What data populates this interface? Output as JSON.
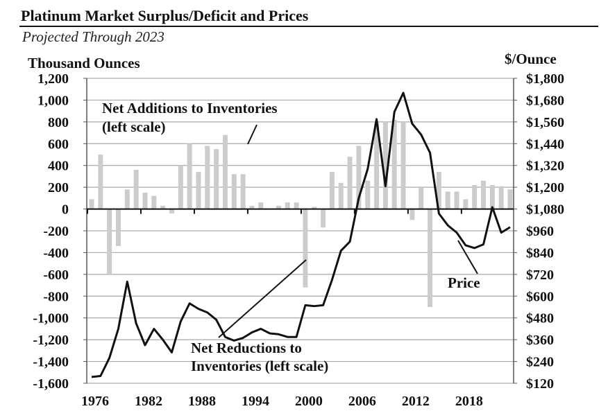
{
  "chart_data": {
    "type": "bar",
    "title": "Platinum Market Surplus/Deficit and Prices",
    "subtitle": "Projected Through 2023",
    "ylabel": "Thousand Ounces",
    "y2label": "$/Ounce",
    "ylim": [
      -1600,
      1200
    ],
    "y2lim": [
      120,
      1800
    ],
    "yticks": [
      "1,200",
      "1,000",
      "800",
      "600",
      "400",
      "200",
      "0",
      "-200",
      "-400",
      "-600",
      "-800",
      "-1,000",
      "-1,200",
      "-1,400",
      "-1,600"
    ],
    "y2ticks": [
      "$1,800",
      "$1,680",
      "$1,560",
      "$1,440",
      "$1,320",
      "$1,200",
      "$1,080",
      "$960",
      "$840",
      "$720",
      "$600",
      "$480",
      "$360",
      "$240",
      "$120"
    ],
    "xticks": [
      "1976",
      "1982",
      "1988",
      "1994",
      "2000",
      "2006",
      "2012",
      "2018"
    ],
    "x": [
      1976,
      1977,
      1978,
      1979,
      1980,
      1981,
      1982,
      1983,
      1984,
      1985,
      1986,
      1987,
      1988,
      1989,
      1990,
      1991,
      1992,
      1993,
      1994,
      1995,
      1996,
      1997,
      1998,
      1999,
      2000,
      2001,
      2002,
      2003,
      2004,
      2005,
      2006,
      2007,
      2008,
      2009,
      2010,
      2011,
      2012,
      2013,
      2014,
      2015,
      2016,
      2017,
      2018,
      2019,
      2020,
      2021,
      2022,
      2023
    ],
    "series": [
      {
        "name": "Net Additions/Reductions to Inventories (left scale)",
        "type": "bar",
        "color": "#cccccc",
        "values": [
          90,
          500,
          -600,
          -340,
          180,
          360,
          150,
          120,
          30,
          -40,
          400,
          600,
          340,
          580,
          550,
          680,
          320,
          320,
          30,
          60,
          0,
          30,
          60,
          60,
          -720,
          20,
          -170,
          340,
          240,
          480,
          580,
          260,
          800,
          800,
          820,
          800,
          -100,
          200,
          -900,
          340,
          160,
          160,
          90,
          220,
          260,
          220,
          210,
          180
        ]
      },
      {
        "name": "Price",
        "type": "line",
        "axis": "right",
        "color": "#111111",
        "values": [
          155,
          160,
          260,
          420,
          680,
          450,
          330,
          420,
          360,
          290,
          460,
          560,
          530,
          510,
          470,
          375,
          355,
          370,
          400,
          420,
          395,
          390,
          375,
          375,
          550,
          545,
          550,
          690,
          850,
          900,
          1140,
          1300,
          1575,
          1205,
          1615,
          1720,
          1550,
          1490,
          1390,
          1055,
          990,
          950,
          880,
          865,
          885,
          1090,
          950,
          980
        ]
      }
    ],
    "annotations": [
      "Net Additions to Inventories",
      "(left scale)",
      "Net Reductions to",
      "Inventories (left scale)",
      "Price"
    ]
  }
}
